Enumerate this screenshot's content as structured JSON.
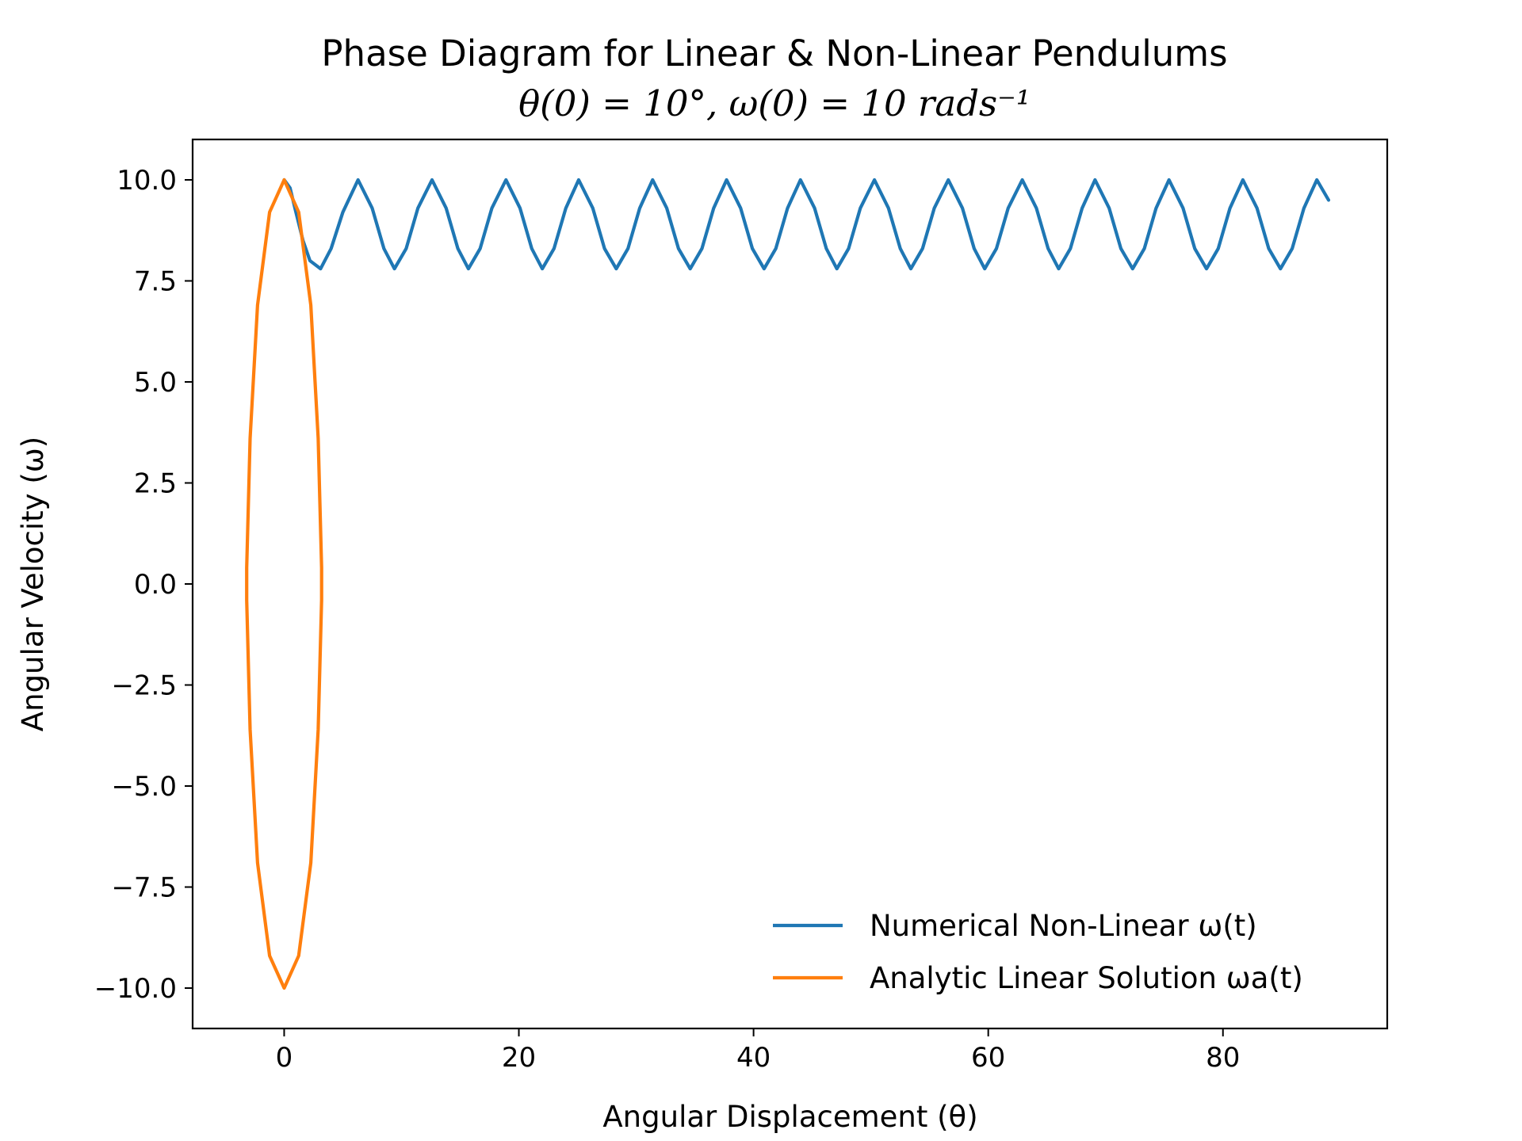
{
  "chart_data": {
    "type": "line",
    "title": "Phase Diagram for Linear & Non-Linear Pendulums",
    "subtitle": "θ(0) = 10°, ω(0) = 10 rads⁻¹",
    "xlabel": "Angular Displacement (θ)",
    "ylabel": "Angular Velocity (ω)",
    "xlim": [
      -7.8,
      94.0
    ],
    "ylim": [
      -11.0,
      11.0
    ],
    "xticks": [
      0,
      20,
      40,
      60,
      80
    ],
    "xtick_labels": [
      "0",
      "20",
      "40",
      "60",
      "80"
    ],
    "yticks": [
      -10.0,
      -7.5,
      -5.0,
      -2.5,
      0.0,
      2.5,
      5.0,
      7.5,
      10.0
    ],
    "ytick_labels": [
      "−10.0",
      "−7.5",
      "−5.0",
      "−2.5",
      "0.0",
      "2.5",
      "5.0",
      "7.5",
      "10.0"
    ],
    "grid": false,
    "legend_position": "bottom-right",
    "series": [
      {
        "name": "Numerical Non-Linear  ω(t)",
        "color": "#1f77b4",
        "x": [
          0.0,
          0.5,
          1.0,
          1.6,
          2.2,
          3.1,
          4.0,
          5.0,
          6.3,
          7.5,
          8.5,
          9.4,
          10.4,
          11.4,
          12.6,
          13.8,
          14.8,
          15.7,
          16.7,
          17.7,
          18.9,
          20.1,
          21.1,
          22.0,
          23.0,
          24.0,
          25.1,
          26.3,
          27.3,
          28.3,
          29.3,
          30.3,
          31.4,
          32.6,
          33.6,
          34.6,
          35.6,
          36.6,
          37.7,
          38.9,
          39.9,
          40.9,
          41.9,
          42.9,
          44.0,
          45.2,
          46.2,
          47.1,
          48.1,
          49.1,
          50.3,
          51.5,
          52.5,
          53.4,
          54.4,
          55.4,
          56.6,
          57.8,
          58.8,
          59.7,
          60.7,
          61.7,
          62.9,
          64.1,
          65.1,
          66.0,
          67.0,
          68.0,
          69.1,
          70.3,
          71.3,
          72.3,
          73.3,
          74.3,
          75.4,
          76.6,
          77.6,
          78.6,
          79.6,
          80.6,
          81.7,
          82.9,
          83.9,
          84.9,
          85.9,
          86.9,
          88.0,
          89.0
        ],
        "y": [
          10.0,
          9.8,
          9.2,
          8.5,
          8.0,
          7.8,
          8.3,
          9.2,
          10.0,
          9.3,
          8.3,
          7.8,
          8.3,
          9.3,
          10.0,
          9.3,
          8.3,
          7.8,
          8.3,
          9.3,
          10.0,
          9.3,
          8.3,
          7.8,
          8.3,
          9.3,
          10.0,
          9.3,
          8.3,
          7.8,
          8.3,
          9.3,
          10.0,
          9.3,
          8.3,
          7.8,
          8.3,
          9.3,
          10.0,
          9.3,
          8.3,
          7.8,
          8.3,
          9.3,
          10.0,
          9.3,
          8.3,
          7.8,
          8.3,
          9.3,
          10.0,
          9.3,
          8.3,
          7.8,
          8.3,
          9.3,
          10.0,
          9.3,
          8.3,
          7.8,
          8.3,
          9.3,
          10.0,
          9.3,
          8.3,
          7.8,
          8.3,
          9.3,
          10.0,
          9.3,
          8.3,
          7.8,
          8.3,
          9.3,
          10.0,
          9.3,
          8.3,
          7.8,
          8.3,
          9.3,
          10.0,
          9.3,
          8.3,
          7.8,
          8.3,
          9.3,
          10.0,
          9.5
        ]
      },
      {
        "name": "Analytic Linear Solution ωa(t)",
        "color": "#ff7f0e",
        "x": [
          0.0,
          1.24,
          2.27,
          2.9,
          3.19,
          3.19,
          2.9,
          2.27,
          1.24,
          0.0,
          -1.24,
          -2.27,
          -2.9,
          -3.19,
          -3.19,
          -2.9,
          -2.27,
          -1.24,
          0.0
        ],
        "y": [
          10.0,
          9.2,
          6.9,
          3.6,
          0.4,
          -0.4,
          -3.6,
          -6.9,
          -9.2,
          -10.0,
          -9.2,
          -6.9,
          -3.6,
          -0.4,
          0.4,
          3.6,
          6.9,
          9.2,
          10.0
        ]
      }
    ]
  }
}
